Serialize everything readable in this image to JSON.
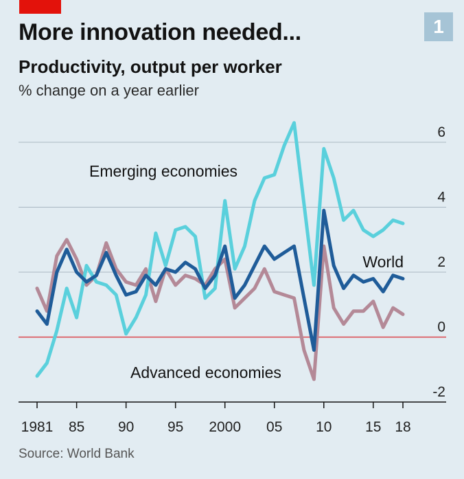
{
  "header": {
    "title": "More innovation needed...",
    "subtitle": "Productivity, output per worker",
    "unit": "% change on a year earlier",
    "badge": "1"
  },
  "footer": {
    "source": "Source: World Bank"
  },
  "colors": {
    "background": "#e2ecf2",
    "accent_red": "#e3120b",
    "badge": "#a6c4d6",
    "grid": "#a9b7c2",
    "zero_line": "#db444b",
    "axis": "#121212"
  },
  "chart_data": {
    "type": "line",
    "x": [
      1981,
      1982,
      1983,
      1984,
      1985,
      1986,
      1987,
      1988,
      1989,
      1990,
      1991,
      1992,
      1993,
      1994,
      1995,
      1996,
      1997,
      1998,
      1999,
      2000,
      2001,
      2002,
      2003,
      2004,
      2005,
      2006,
      2007,
      2008,
      2009,
      2010,
      2011,
      2012,
      2013,
      2014,
      2015,
      2016,
      2017,
      2018
    ],
    "x_tick_labels": [
      {
        "x": 1981,
        "label": "1981"
      },
      {
        "x": 1985,
        "label": "85"
      },
      {
        "x": 1990,
        "label": "90"
      },
      {
        "x": 1995,
        "label": "95"
      },
      {
        "x": 2000,
        "label": "2000"
      },
      {
        "x": 2005,
        "label": "05"
      },
      {
        "x": 2010,
        "label": "10"
      },
      {
        "x": 2015,
        "label": "15"
      },
      {
        "x": 2018,
        "label": "18"
      }
    ],
    "y_ticks": [
      {
        "value": 6,
        "label": "6"
      },
      {
        "value": 4,
        "label": "4"
      },
      {
        "value": 2,
        "label": "2"
      },
      {
        "value": 0,
        "label": "0"
      },
      {
        "value": -2,
        "label": "-2"
      }
    ],
    "xlim": [
      1981,
      2018
    ],
    "ylim": [
      -2,
      6
    ],
    "grid": true,
    "series": [
      {
        "name": "Emerging economies",
        "color": "#5ad0dc",
        "values": [
          -1.2,
          -0.8,
          0.2,
          1.5,
          0.6,
          2.2,
          1.7,
          1.6,
          1.3,
          0.1,
          0.6,
          1.3,
          3.2,
          2.2,
          3.3,
          3.4,
          3.1,
          1.2,
          1.5,
          4.2,
          2.1,
          2.8,
          4.2,
          4.9,
          5.0,
          5.9,
          6.6,
          4.1,
          1.6,
          5.8,
          4.9,
          3.6,
          3.9,
          3.3,
          3.1,
          3.3,
          3.6,
          3.5
        ]
      },
      {
        "name": "World",
        "color": "#1f5c99",
        "values": [
          0.8,
          0.4,
          2.0,
          2.7,
          2.0,
          1.7,
          1.9,
          2.6,
          1.9,
          1.3,
          1.4,
          1.9,
          1.6,
          2.1,
          2.0,
          2.3,
          2.1,
          1.5,
          1.9,
          2.8,
          1.2,
          1.6,
          2.2,
          2.8,
          2.4,
          2.6,
          2.8,
          1.2,
          -0.4,
          3.9,
          2.2,
          1.5,
          1.9,
          1.7,
          1.8,
          1.4,
          1.9,
          1.8
        ]
      },
      {
        "name": "Advanced economies",
        "color": "#b48997",
        "values": [
          1.5,
          0.8,
          2.5,
          3.0,
          2.4,
          1.6,
          1.9,
          2.9,
          2.1,
          1.7,
          1.6,
          2.1,
          1.1,
          2.1,
          1.6,
          1.9,
          1.8,
          1.6,
          2.1,
          2.4,
          0.9,
          1.2,
          1.5,
          2.1,
          1.4,
          1.3,
          1.2,
          -0.4,
          -1.3,
          2.8,
          0.9,
          0.4,
          0.8,
          0.8,
          1.1,
          0.3,
          0.9,
          0.7
        ]
      }
    ]
  }
}
